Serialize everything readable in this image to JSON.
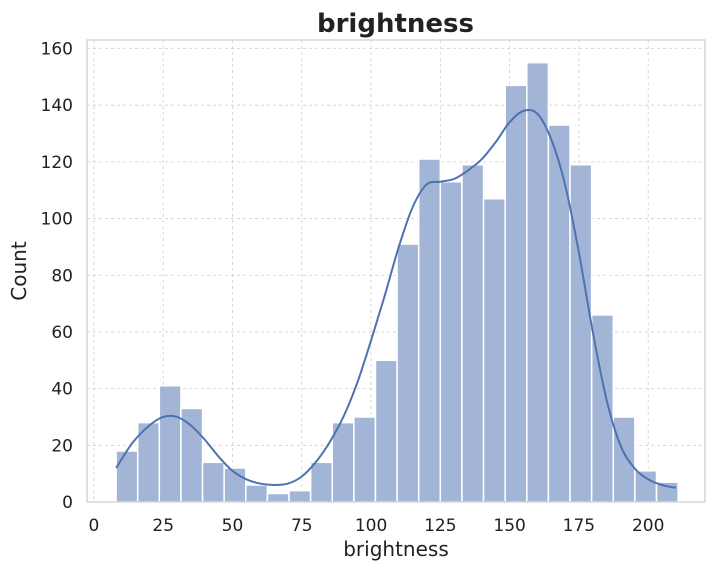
{
  "chart_data": {
    "type": "bar",
    "subtype": "histogram-with-kde",
    "title": "brightness",
    "xlabel": "brightness",
    "ylabel": "Count",
    "xlim": [
      -2.5,
      220.5
    ],
    "ylim": [
      0,
      163
    ],
    "xticks": [
      0,
      25,
      50,
      75,
      100,
      125,
      150,
      175,
      200
    ],
    "yticks": [
      0,
      20,
      40,
      60,
      80,
      100,
      120,
      140,
      160
    ],
    "grid": true,
    "bin_width": 7.8,
    "bins": [
      {
        "x0": 8.0,
        "count": 18
      },
      {
        "x0": 15.8,
        "count": 28
      },
      {
        "x0": 23.6,
        "count": 41
      },
      {
        "x0": 31.4,
        "count": 33
      },
      {
        "x0": 39.2,
        "count": 14
      },
      {
        "x0": 47.0,
        "count": 12
      },
      {
        "x0": 54.8,
        "count": 6
      },
      {
        "x0": 62.6,
        "count": 3
      },
      {
        "x0": 70.4,
        "count": 4
      },
      {
        "x0": 78.2,
        "count": 14
      },
      {
        "x0": 86.0,
        "count": 28
      },
      {
        "x0": 93.8,
        "count": 30
      },
      {
        "x0": 101.6,
        "count": 50
      },
      {
        "x0": 109.4,
        "count": 91
      },
      {
        "x0": 117.2,
        "count": 121
      },
      {
        "x0": 125.0,
        "count": 113
      },
      {
        "x0": 132.8,
        "count": 119
      },
      {
        "x0": 140.6,
        "count": 107
      },
      {
        "x0": 148.4,
        "count": 147
      },
      {
        "x0": 156.2,
        "count": 155
      },
      {
        "x0": 164.0,
        "count": 133
      },
      {
        "x0": 171.8,
        "count": 119
      },
      {
        "x0": 179.6,
        "count": 66
      },
      {
        "x0": 187.4,
        "count": 30
      },
      {
        "x0": 195.2,
        "count": 11
      },
      {
        "x0": 203.0,
        "count": 7
      }
    ],
    "kde": {
      "x": [
        8,
        14,
        20,
        25,
        30,
        35,
        40,
        45,
        50,
        55,
        60,
        65,
        70,
        75,
        80,
        85,
        90,
        95,
        100,
        105,
        110,
        115,
        120,
        125,
        130,
        135,
        140,
        145,
        150,
        155,
        160,
        165,
        170,
        175,
        180,
        185,
        190,
        195,
        200,
        205,
        210
      ],
      "y": [
        12,
        21,
        27,
        30,
        30,
        27,
        22,
        16,
        11,
        8,
        6.5,
        6,
        6.5,
        9,
        14,
        21,
        30,
        42,
        57,
        73,
        90,
        104,
        112,
        113,
        114,
        117,
        121,
        127,
        134,
        138,
        137,
        128,
        112,
        88,
        60,
        36,
        20,
        12,
        8,
        6,
        5
      ]
    },
    "colors": {
      "bar": "#a3b5d6",
      "kde": "#4c72b0"
    }
  }
}
